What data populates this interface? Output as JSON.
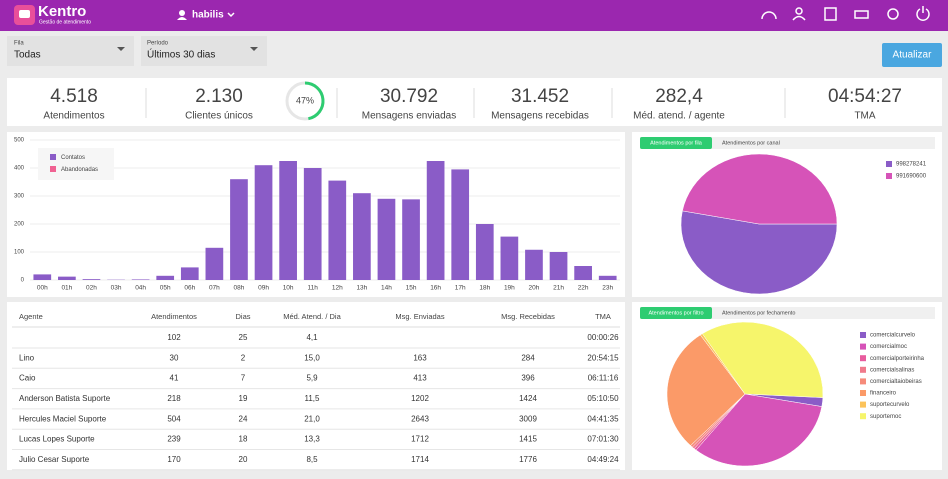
{
  "header": {
    "brand": "Kentro",
    "tagline": "Gestão de atendimento",
    "user": "habilis"
  },
  "filters": [
    {
      "label": "Fila",
      "value": "Todas"
    },
    {
      "label": "Período",
      "value": "Últimos 30 dias"
    }
  ],
  "update_button": "Atualizar",
  "kpis": [
    {
      "value": "4.518",
      "label": "Atendimentos"
    },
    {
      "value": "2.130",
      "label": "Clientes únicos"
    },
    {
      "value": "30.792",
      "label": "Mensagens enviadas"
    },
    {
      "value": "31.452",
      "label": "Mensagens recebidas"
    },
    {
      "value": "282,4",
      "label": "Méd. atend. / agente"
    },
    {
      "value": "04:54:27",
      "label": "TMA"
    }
  ],
  "gauge": {
    "value": 47,
    "value_label": "47%"
  },
  "hourly_chart": {
    "type": "bar",
    "categories": [
      "00h",
      "01h",
      "02h",
      "03h",
      "04h",
      "05h",
      "06h",
      "07h",
      "08h",
      "09h",
      "10h",
      "11h",
      "12h",
      "13h",
      "14h",
      "15h",
      "16h",
      "17h",
      "18h",
      "19h",
      "20h",
      "21h",
      "22h",
      "23h"
    ],
    "series": [
      {
        "name": "Contatos",
        "color": "#8a5cc7",
        "values": [
          20,
          12,
          3,
          1,
          2,
          15,
          45,
          115,
          360,
          410,
          425,
          400,
          355,
          310,
          290,
          288,
          425,
          395,
          200,
          155,
          108,
          100,
          50,
          15
        ]
      },
      {
        "name": "Abandonadas",
        "color": "#f06292",
        "values": [
          0,
          0,
          0,
          0,
          0,
          0,
          0,
          0,
          0,
          0,
          0,
          0,
          0,
          0,
          0,
          0,
          0,
          0,
          0,
          0,
          0,
          0,
          0,
          0
        ]
      }
    ],
    "ylim": [
      0,
      500
    ],
    "yticks": [
      0,
      100,
      200,
      300,
      400,
      500
    ],
    "grid": true
  },
  "pie_queue": {
    "type": "pie",
    "tabs": [
      "Atendimentos por fila",
      "Atendimentos por canal"
    ],
    "categories": [
      "998278241",
      "991690600"
    ],
    "colors": [
      "#8a5cc7",
      "#d653b8"
    ],
    "values": [
      53,
      47
    ]
  },
  "pie_filter": {
    "type": "pie",
    "tabs": [
      "Atendimentos por filtro",
      "Atendimentos por fechamento"
    ],
    "categories": [
      "comercialcurvelo",
      "comercialmoc",
      "comercialporteirinha",
      "comercialsalinas",
      "comercialtaiobeiras",
      "financeiro",
      "suportecurvelo",
      "suportemoc"
    ],
    "colors": [
      "#8a5cc7",
      "#d653b8",
      "#e85c9e",
      "#f07a8c",
      "#f68b7a",
      "#fb9a68",
      "#fcc35a",
      "#f6f56b"
    ],
    "values": [
      2,
      33,
      0.5,
      0.5,
      0.5,
      28,
      0.5,
      35
    ]
  },
  "table": {
    "columns": [
      "Agente",
      "Atendimentos",
      "Dias",
      "Méd. Atend. / Dia",
      "Msg. Enviadas",
      "Msg. Recebidas",
      "TMA"
    ],
    "rows": [
      [
        null,
        "102",
        "25",
        "4,1",
        null,
        null,
        "00:00:26"
      ],
      [
        "Lino",
        "30",
        "2",
        "15,0",
        "163",
        "284",
        "20:54:15"
      ],
      [
        "Caio",
        "41",
        "7",
        "5,9",
        "413",
        "396",
        "06:11:16"
      ],
      [
        "Anderson Batista Suporte",
        "218",
        "19",
        "11,5",
        "1202",
        "1424",
        "05:10:50"
      ],
      [
        "Hercules Maciel Suporte",
        "504",
        "24",
        "21,0",
        "2643",
        "3009",
        "04:41:35"
      ],
      [
        "Lucas Lopes Suporte",
        "239",
        "18",
        "13,3",
        "1712",
        "1415",
        "07:01:30"
      ],
      [
        "Julio Cesar Suporte",
        "170",
        "20",
        "8,5",
        "1714",
        "1776",
        "04:49:24"
      ]
    ]
  }
}
